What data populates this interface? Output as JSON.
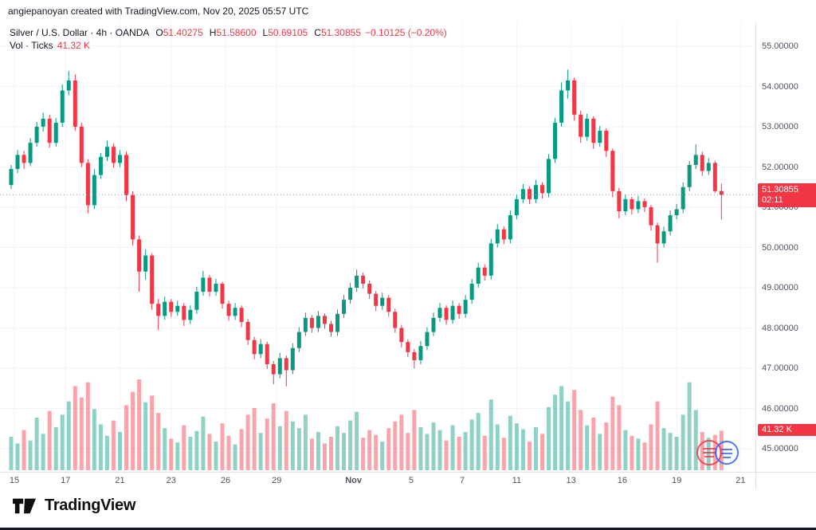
{
  "attribution": "angiepanoyan created with TradingView.com, Nov 20, 2025 05:57 UTC",
  "legend": {
    "title": "Silver / U.S. Dollar · 4h · OANDA",
    "ohlc": {
      "o_label": "O",
      "o": "51.40275",
      "h_label": "H",
      "h": "51.58600",
      "l_label": "L",
      "l": "50.69105",
      "c_label": "C",
      "c": "51.30855",
      "change": "−0.10125 (−0.20%)"
    },
    "volume_label": "Vol · Ticks",
    "volume_value": "41.32 K"
  },
  "price_badge": {
    "price": "51.30855",
    "countdown": "02:11"
  },
  "volume_badge": "41.32 K",
  "footer": {
    "brand": "TradingView"
  },
  "colors": {
    "up": "#089981",
    "down": "#f23645",
    "grid": "#f0f3fa",
    "axis_line": "#e0e3eb",
    "price_line": "#9598a1"
  },
  "price_scale": {
    "labels": [
      "55.00000",
      "54.00000",
      "53.00000",
      "52.00000",
      "51.00000",
      "50.00000",
      "49.00000",
      "48.00000",
      "47.00000",
      "46.00000",
      "45.00000"
    ]
  },
  "time_scale": {
    "labels": [
      {
        "label": "15",
        "i": 0.5
      },
      {
        "label": "17",
        "i": 8.5
      },
      {
        "label": "21",
        "i": 17
      },
      {
        "label": "23",
        "i": 25
      },
      {
        "label": "26",
        "i": 33.5
      },
      {
        "label": "29",
        "i": 41.5
      },
      {
        "label": "Nov",
        "i": 53.5,
        "bold": true
      },
      {
        "label": "5",
        "i": 62.5
      },
      {
        "label": "7",
        "i": 70.5
      },
      {
        "label": "11",
        "i": 79
      },
      {
        "label": "13",
        "i": 87.5
      },
      {
        "label": "16",
        "i": 95.5
      },
      {
        "label": "19",
        "i": 104
      },
      {
        "label": "21",
        "i": 114
      }
    ]
  },
  "chart_data": {
    "type": "candlestick+volume",
    "symbol": "Silver / U.S. Dollar",
    "exchange": "OANDA",
    "timeframe": "4h",
    "title": "Silver / U.S. Dollar · 4h · OANDA",
    "x_axis_labels": [
      "15",
      "17",
      "21",
      "23",
      "26",
      "29",
      "Nov",
      "5",
      "7",
      "11",
      "13",
      "16",
      "19",
      "21"
    ],
    "ylim": [
      44.55,
      55.45
    ],
    "volume_unit": "K",
    "current_price": 51.30855,
    "current_bar": {
      "open": 51.40275,
      "high": 51.586,
      "low": 50.69105,
      "close": 51.30855,
      "change": -0.10125,
      "change_pct": -0.2,
      "volume_k": 41.32
    },
    "candles": [
      [
        51.55,
        52.05,
        51.45,
        51.95
      ],
      [
        51.95,
        52.42,
        51.85,
        52.3
      ],
      [
        52.3,
        52.4,
        51.95,
        52.1
      ],
      [
        52.1,
        52.72,
        52.02,
        52.6
      ],
      [
        52.6,
        53.12,
        52.5,
        53.0
      ],
      [
        53.0,
        53.35,
        52.88,
        53.2
      ],
      [
        53.2,
        53.3,
        52.48,
        52.6
      ],
      [
        52.6,
        53.22,
        52.5,
        53.1
      ],
      [
        53.1,
        54.05,
        53.0,
        53.9
      ],
      [
        53.9,
        54.38,
        53.78,
        54.15
      ],
      [
        54.15,
        54.3,
        52.9,
        53.0
      ],
      [
        53.0,
        53.1,
        52.0,
        52.1
      ],
      [
        52.1,
        52.2,
        50.85,
        51.05
      ],
      [
        51.05,
        51.95,
        50.95,
        51.8
      ],
      [
        51.8,
        52.35,
        51.7,
        52.25
      ],
      [
        52.25,
        52.65,
        52.15,
        52.5
      ],
      [
        52.5,
        52.58,
        51.98,
        52.1
      ],
      [
        52.1,
        52.42,
        52.0,
        52.3
      ],
      [
        52.3,
        52.38,
        51.15,
        51.3
      ],
      [
        51.3,
        51.4,
        50.05,
        50.2
      ],
      [
        50.2,
        50.3,
        48.9,
        49.4
      ],
      [
        49.4,
        49.95,
        49.2,
        49.8
      ],
      [
        49.8,
        49.85,
        48.45,
        48.6
      ],
      [
        48.6,
        48.72,
        47.95,
        48.3
      ],
      [
        48.3,
        48.78,
        48.2,
        48.65
      ],
      [
        48.65,
        48.72,
        48.28,
        48.4
      ],
      [
        48.4,
        48.68,
        48.3,
        48.55
      ],
      [
        48.55,
        48.62,
        48.05,
        48.2
      ],
      [
        48.2,
        48.56,
        48.1,
        48.45
      ],
      [
        48.45,
        49.02,
        48.35,
        48.9
      ],
      [
        48.9,
        49.42,
        48.8,
        49.25
      ],
      [
        49.25,
        49.32,
        48.78,
        48.9
      ],
      [
        48.9,
        49.22,
        48.8,
        49.1
      ],
      [
        49.1,
        49.15,
        48.48,
        48.6
      ],
      [
        48.6,
        48.68,
        48.18,
        48.3
      ],
      [
        48.3,
        48.62,
        48.2,
        48.5
      ],
      [
        48.5,
        48.56,
        48.02,
        48.15
      ],
      [
        48.15,
        48.22,
        47.58,
        47.7
      ],
      [
        47.7,
        47.78,
        47.22,
        47.35
      ],
      [
        47.35,
        47.72,
        47.25,
        47.6
      ],
      [
        47.6,
        47.66,
        46.98,
        47.1
      ],
      [
        47.1,
        47.18,
        46.6,
        46.85
      ],
      [
        46.85,
        47.38,
        46.75,
        47.25
      ],
      [
        47.25,
        47.32,
        46.55,
        46.95
      ],
      [
        46.95,
        47.62,
        46.85,
        47.5
      ],
      [
        47.5,
        48.02,
        47.4,
        47.9
      ],
      [
        47.9,
        48.38,
        47.8,
        48.25
      ],
      [
        48.25,
        48.32,
        47.88,
        48.0
      ],
      [
        48.0,
        48.42,
        47.9,
        48.3
      ],
      [
        48.3,
        48.36,
        47.98,
        48.1
      ],
      [
        48.1,
        48.18,
        47.78,
        47.9
      ],
      [
        47.9,
        48.46,
        47.8,
        48.35
      ],
      [
        48.35,
        48.82,
        48.25,
        48.7
      ],
      [
        48.7,
        49.12,
        48.6,
        49.0
      ],
      [
        49.0,
        49.45,
        48.9,
        49.3
      ],
      [
        49.3,
        49.38,
        48.98,
        49.1
      ],
      [
        49.1,
        49.18,
        48.72,
        48.85
      ],
      [
        48.85,
        48.92,
        48.42,
        48.55
      ],
      [
        48.55,
        48.88,
        48.45,
        48.75
      ],
      [
        48.75,
        48.82,
        48.28,
        48.4
      ],
      [
        48.4,
        48.48,
        47.88,
        48.0
      ],
      [
        48.0,
        48.08,
        47.52,
        47.65
      ],
      [
        47.65,
        47.72,
        47.28,
        47.4
      ],
      [
        47.4,
        47.48,
        47.0,
        47.2
      ],
      [
        47.2,
        47.68,
        47.1,
        47.55
      ],
      [
        47.55,
        48.02,
        47.45,
        47.9
      ],
      [
        47.9,
        48.38,
        47.8,
        48.25
      ],
      [
        48.25,
        48.62,
        48.15,
        48.5
      ],
      [
        48.5,
        48.56,
        48.08,
        48.2
      ],
      [
        48.2,
        48.68,
        48.1,
        48.55
      ],
      [
        48.55,
        48.62,
        48.22,
        48.35
      ],
      [
        48.35,
        48.82,
        48.25,
        48.7
      ],
      [
        48.7,
        49.22,
        48.6,
        49.1
      ],
      [
        49.1,
        49.62,
        49.0,
        49.5
      ],
      [
        49.5,
        49.58,
        49.18,
        49.3
      ],
      [
        49.3,
        50.22,
        49.2,
        50.1
      ],
      [
        50.1,
        50.58,
        50.0,
        50.45
      ],
      [
        50.45,
        50.52,
        50.08,
        50.2
      ],
      [
        50.2,
        50.92,
        50.1,
        50.8
      ],
      [
        50.8,
        51.32,
        50.7,
        51.2
      ],
      [
        51.2,
        51.58,
        51.1,
        51.45
      ],
      [
        51.45,
        51.52,
        51.08,
        51.2
      ],
      [
        51.2,
        51.68,
        51.1,
        51.55
      ],
      [
        51.55,
        51.62,
        51.22,
        51.35
      ],
      [
        51.35,
        52.32,
        51.25,
        52.2
      ],
      [
        52.2,
        53.22,
        52.1,
        53.1
      ],
      [
        53.1,
        54.1,
        53.0,
        53.9
      ],
      [
        53.9,
        54.42,
        53.7,
        54.15
      ],
      [
        54.15,
        54.22,
        53.15,
        53.3
      ],
      [
        53.3,
        53.4,
        52.6,
        52.75
      ],
      [
        52.75,
        53.32,
        52.65,
        53.2
      ],
      [
        53.2,
        53.26,
        52.45,
        52.6
      ],
      [
        52.6,
        53.02,
        52.5,
        52.9
      ],
      [
        52.9,
        52.96,
        52.25,
        52.4
      ],
      [
        52.4,
        52.46,
        51.25,
        51.4
      ],
      [
        51.4,
        51.48,
        50.72,
        50.9
      ],
      [
        50.9,
        51.32,
        50.8,
        51.2
      ],
      [
        51.2,
        51.26,
        50.82,
        50.95
      ],
      [
        50.95,
        51.28,
        50.85,
        51.15
      ],
      [
        51.15,
        51.22,
        50.88,
        51.0
      ],
      [
        51.0,
        51.06,
        50.42,
        50.55
      ],
      [
        50.55,
        50.62,
        49.62,
        50.1
      ],
      [
        50.1,
        50.52,
        50.0,
        50.4
      ],
      [
        50.4,
        50.92,
        50.3,
        50.8
      ],
      [
        50.8,
        51.08,
        50.7,
        50.95
      ],
      [
        50.95,
        51.62,
        50.85,
        51.5
      ],
      [
        51.5,
        52.15,
        51.4,
        52.05
      ],
      [
        52.05,
        52.56,
        51.95,
        52.3
      ],
      [
        52.3,
        52.38,
        51.78,
        51.9
      ],
      [
        51.9,
        52.22,
        51.8,
        52.1
      ],
      [
        52.1,
        52.16,
        51.35,
        51.4
      ],
      [
        51.40275,
        51.586,
        50.69105,
        51.30855
      ]
    ],
    "volumes_k": [
      35,
      28,
      42,
      31,
      55,
      38,
      62,
      45,
      58,
      72,
      88,
      76,
      92,
      64,
      48,
      36,
      52,
      40,
      68,
      82,
      95,
      71,
      78,
      60,
      44,
      33,
      29,
      47,
      35,
      41,
      56,
      38,
      30,
      49,
      36,
      27,
      43,
      58,
      65,
      39,
      54,
      70,
      46,
      62,
      51,
      44,
      58,
      33,
      40,
      28,
      35,
      46,
      39,
      52,
      61,
      34,
      42,
      37,
      30,
      44,
      51,
      58,
      39,
      63,
      45,
      38,
      50,
      42,
      31,
      47,
      35,
      40,
      53,
      60,
      36,
      74,
      48,
      34,
      57,
      49,
      43,
      30,
      45,
      38,
      66,
      79,
      88,
      72,
      84,
      63,
      47,
      55,
      38,
      50,
      77,
      68,
      42,
      36,
      33,
      29,
      48,
      72,
      44,
      39,
      35,
      58,
      92,
      63,
      40,
      34,
      37,
      41.32
    ]
  }
}
